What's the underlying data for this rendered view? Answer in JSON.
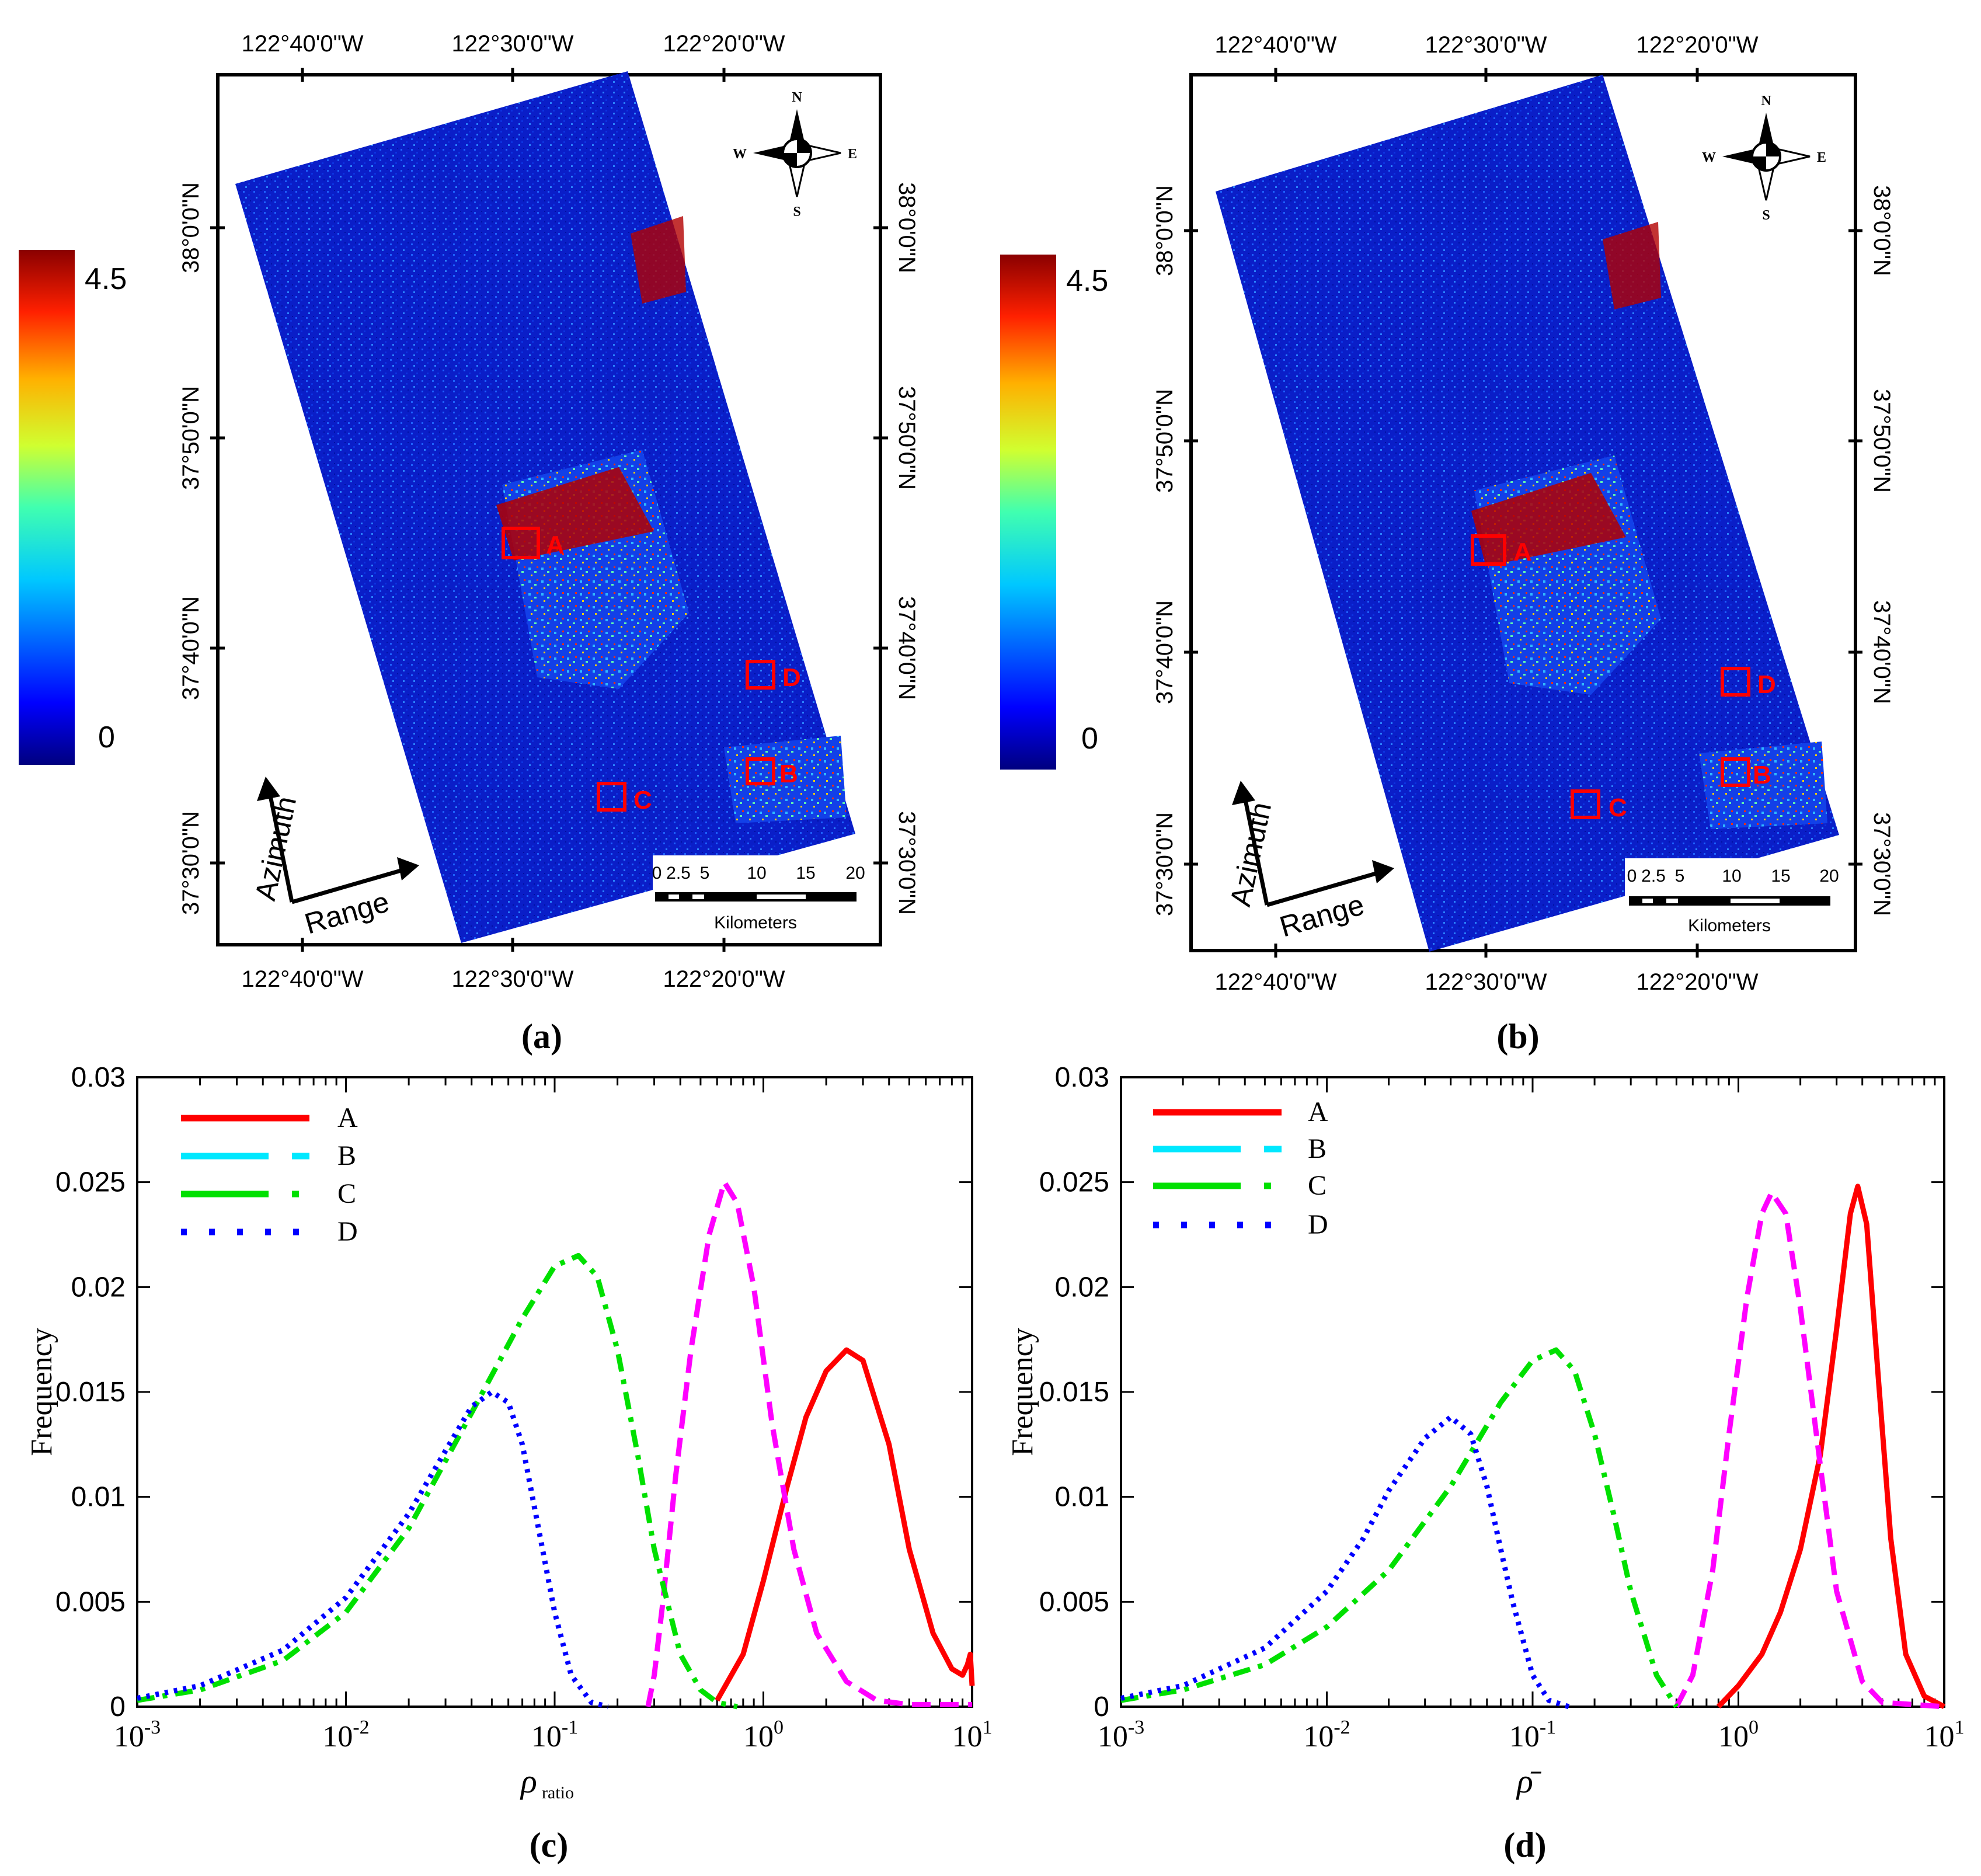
{
  "panels": {
    "a": {
      "label": "(a)",
      "colorbar": {
        "max_label": "4.5",
        "min_label": "0"
      },
      "top_lon_ticks": [
        "122°40'0\"W",
        "122°30'0\"W",
        "122°20'0\"W"
      ],
      "bottom_lon_ticks": [
        "122°40'0\"W",
        "122°30'0\"W",
        "122°20'0\"W"
      ],
      "lat_ticks": [
        "38°0'0\"N",
        "37°50'0\"N",
        "37°40'0\"N",
        "37°30'0\"N"
      ],
      "regions": [
        "A",
        "B",
        "C",
        "D"
      ],
      "arrows": {
        "azimuth": "Azimuth",
        "range": "Range"
      },
      "compass": {
        "n": "N",
        "s": "S",
        "e": "E",
        "w": "W"
      },
      "scalebar": {
        "ticks": [
          "0",
          "2.5",
          "5",
          "10",
          "15",
          "20"
        ],
        "unit": "Kilometers"
      }
    },
    "b": {
      "label": "(b)",
      "colorbar": {
        "max_label": "4.5",
        "min_label": "0"
      },
      "top_lon_ticks": [
        "122°40'0\"W",
        "122°30'0\"W",
        "122°20'0\"W"
      ],
      "bottom_lon_ticks": [
        "122°40'0\"W",
        "122°30'0\"W",
        "122°20'0\"W"
      ],
      "lat_ticks": [
        "38°0'0\"N",
        "37°50'0\"N",
        "37°40'0\"N",
        "37°30'0\"N"
      ],
      "regions": [
        "A",
        "B",
        "C",
        "D"
      ],
      "arrows": {
        "azimuth": "Azimuth",
        "range": "Range"
      },
      "compass": {
        "n": "N",
        "s": "S",
        "e": "E",
        "w": "W"
      },
      "scalebar": {
        "ticks": [
          "0",
          "2.5",
          "5",
          "10",
          "15",
          "20"
        ],
        "unit": "Kilometers"
      }
    }
  },
  "chart_data": [
    {
      "panel_label": "(c)",
      "type": "line",
      "xscale": "log",
      "xlim": [
        0.001,
        10
      ],
      "ylim": [
        0,
        0.03
      ],
      "xlabel": "ρ",
      "xlabel_sub": "ratio",
      "ylabel": "Frequency",
      "xtick_labels": [
        {
          "base": "10",
          "exp": "-3"
        },
        {
          "base": "10",
          "exp": "-2"
        },
        {
          "base": "10",
          "exp": "-1"
        },
        {
          "base": "10",
          "exp": "0"
        },
        {
          "base": "10",
          "exp": "1"
        }
      ],
      "ytick_labels": [
        "0",
        "0.005",
        "0.01",
        "0.015",
        "0.02",
        "0.025",
        "0.03"
      ],
      "legend": [
        "A",
        "B",
        "C",
        "D"
      ],
      "series": [
        {
          "name": "A",
          "color": "#ff0000",
          "style": "solid",
          "x": [
            0.6,
            0.8,
            1.0,
            1.3,
            1.6,
            2.0,
            2.5,
            3.0,
            4.0,
            5.0,
            6.5,
            8.0,
            9.0,
            9.5,
            9.8,
            10.0
          ],
          "y": [
            0.0003,
            0.0025,
            0.006,
            0.0105,
            0.0138,
            0.016,
            0.017,
            0.0165,
            0.0125,
            0.0075,
            0.0035,
            0.0018,
            0.0015,
            0.002,
            0.0025,
            0.001
          ]
        },
        {
          "name": "B",
          "color": "#ff00ff",
          "style": "dashed",
          "x": [
            0.28,
            0.3,
            0.33,
            0.38,
            0.45,
            0.55,
            0.65,
            0.75,
            0.9,
            1.1,
            1.4,
            1.8,
            2.5,
            3.5,
            5.0,
            10.0
          ],
          "y": [
            0.0,
            0.0015,
            0.005,
            0.011,
            0.017,
            0.0225,
            0.025,
            0.024,
            0.02,
            0.0135,
            0.0075,
            0.0035,
            0.0012,
            0.0003,
            0.0001,
            0.0001
          ]
        },
        {
          "name": "C",
          "color": "#00e000",
          "style": "dashdot",
          "x": [
            0.001,
            0.002,
            0.005,
            0.01,
            0.02,
            0.04,
            0.07,
            0.1,
            0.13,
            0.16,
            0.2,
            0.25,
            0.3,
            0.4,
            0.5,
            0.6,
            0.75
          ],
          "y": [
            0.0003,
            0.0008,
            0.0022,
            0.0045,
            0.0085,
            0.014,
            0.0185,
            0.021,
            0.0215,
            0.0205,
            0.017,
            0.012,
            0.0075,
            0.0025,
            0.0008,
            0.0002,
            0.0
          ]
        },
        {
          "name": "D",
          "color": "#0000ff",
          "style": "dotted",
          "x": [
            0.001,
            0.002,
            0.005,
            0.01,
            0.02,
            0.03,
            0.04,
            0.05,
            0.06,
            0.07,
            0.08,
            0.1,
            0.12,
            0.15,
            0.18
          ],
          "y": [
            0.0004,
            0.001,
            0.0027,
            0.0052,
            0.0092,
            0.0122,
            0.0143,
            0.015,
            0.0145,
            0.0125,
            0.0095,
            0.0045,
            0.0015,
            0.0002,
            0.0
          ]
        }
      ]
    },
    {
      "panel_label": "(d)",
      "type": "line",
      "xscale": "log",
      "xlim": [
        0.001,
        10
      ],
      "ylim": [
        0,
        0.03
      ],
      "xlabel": "ρ̄",
      "xlabel_sub": "",
      "ylabel": "Frequency",
      "xtick_labels": [
        {
          "base": "10",
          "exp": "-3"
        },
        {
          "base": "10",
          "exp": "-2"
        },
        {
          "base": "10",
          "exp": "-1"
        },
        {
          "base": "10",
          "exp": "0"
        },
        {
          "base": "10",
          "exp": "1"
        }
      ],
      "ytick_labels": [
        "0",
        "0.005",
        "0.01",
        "0.015",
        "0.02",
        "0.025",
        "0.03"
      ],
      "legend": [
        "A",
        "B",
        "C",
        "D"
      ],
      "series": [
        {
          "name": "A",
          "color": "#ff0000",
          "style": "solid",
          "x": [
            0.8,
            1.0,
            1.3,
            1.6,
            2.0,
            2.5,
            3.0,
            3.5,
            3.8,
            4.2,
            4.8,
            5.5,
            6.5,
            8.0,
            10.0
          ],
          "y": [
            0.0,
            0.001,
            0.0025,
            0.0045,
            0.0075,
            0.012,
            0.018,
            0.0235,
            0.0248,
            0.023,
            0.0155,
            0.008,
            0.0025,
            0.0005,
            0.0
          ]
        },
        {
          "name": "B",
          "color": "#ff00ff",
          "style": "dashed",
          "x": [
            0.5,
            0.6,
            0.75,
            0.9,
            1.1,
            1.3,
            1.45,
            1.7,
            2.0,
            2.5,
            3.0,
            4.0,
            5.0,
            10.0
          ],
          "y": [
            0.0,
            0.0015,
            0.0065,
            0.013,
            0.0195,
            0.0235,
            0.0245,
            0.0235,
            0.019,
            0.0115,
            0.0055,
            0.0012,
            0.0002,
            0.0
          ]
        },
        {
          "name": "C",
          "color": "#00e000",
          "style": "dashdot",
          "x": [
            0.001,
            0.002,
            0.005,
            0.01,
            0.02,
            0.04,
            0.07,
            0.1,
            0.13,
            0.16,
            0.2,
            0.25,
            0.3,
            0.4,
            0.5
          ],
          "y": [
            0.0003,
            0.0008,
            0.002,
            0.0038,
            0.0065,
            0.0105,
            0.0145,
            0.0165,
            0.017,
            0.016,
            0.013,
            0.009,
            0.0055,
            0.0015,
            0.0
          ]
        },
        {
          "name": "D",
          "color": "#0000ff",
          "style": "dotted",
          "x": [
            0.001,
            0.002,
            0.005,
            0.01,
            0.015,
            0.02,
            0.03,
            0.04,
            0.05,
            0.06,
            0.07,
            0.08,
            0.1,
            0.12,
            0.15
          ],
          "y": [
            0.0004,
            0.001,
            0.0028,
            0.0055,
            0.008,
            0.0103,
            0.0128,
            0.0138,
            0.013,
            0.0105,
            0.0075,
            0.005,
            0.0015,
            0.0003,
            0.0
          ]
        }
      ]
    }
  ]
}
